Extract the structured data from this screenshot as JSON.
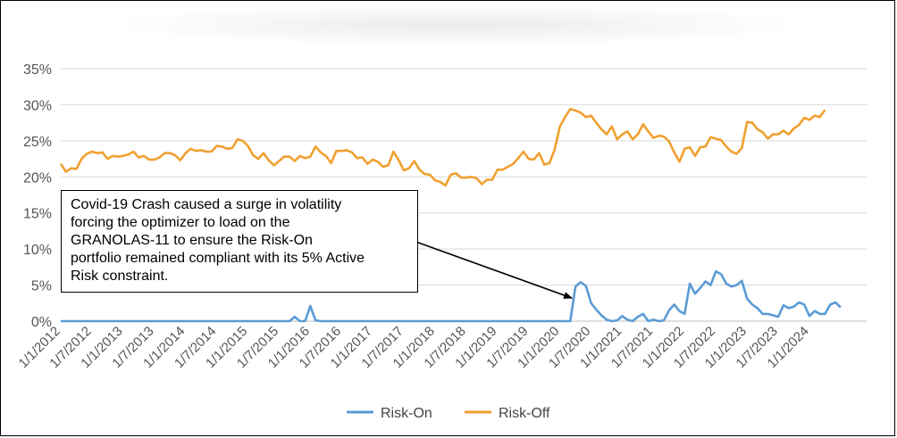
{
  "chart_data": {
    "type": "line",
    "ylim": [
      0,
      35
    ],
    "y_ticks": [
      "0%",
      "5%",
      "10%",
      "15%",
      "20%",
      "25%",
      "30%",
      "35%"
    ],
    "x_tick_labels": [
      "1/1/2012",
      "1/7/2012",
      "1/1/2013",
      "1/7/2013",
      "1/1/2014",
      "1/7/2014",
      "1/1/2015",
      "1/7/2015",
      "1/1/2016",
      "1/7/2016",
      "1/1/2017",
      "1/7/2017",
      "1/1/2018",
      "1/7/2018",
      "1/1/2019",
      "1/7/2019",
      "1/1/2020",
      "1/7/2020",
      "1/1/2021",
      "1/7/2021",
      "1/1/2022",
      "1/7/2022",
      "1/1/2023",
      "1/7/2023",
      "1/1/2024"
    ],
    "x_range": [
      "2012-01",
      "2024-12"
    ],
    "grid": true,
    "legend_position": "bottom",
    "series": [
      {
        "name": "Risk-On",
        "color": "#5B9BD5",
        "points": [
          [
            "2012-01",
            0
          ],
          [
            "2015-09",
            0
          ],
          [
            "2015-10",
            0.6
          ],
          [
            "2015-11",
            0
          ],
          [
            "2015-12",
            0
          ],
          [
            "2016-01",
            2.1
          ],
          [
            "2016-02",
            0.1
          ],
          [
            "2016-03",
            0
          ],
          [
            "2020-03",
            0
          ],
          [
            "2020-04",
            4.8
          ],
          [
            "2020-05",
            5.4
          ],
          [
            "2020-06",
            4.9
          ],
          [
            "2020-07",
            2.5
          ],
          [
            "2020-08",
            1.6
          ],
          [
            "2020-09",
            0.8
          ],
          [
            "2020-10",
            0.2
          ],
          [
            "2020-11",
            0.0
          ],
          [
            "2020-12",
            0.1
          ],
          [
            "2021-01",
            0.7
          ],
          [
            "2021-02",
            0.2
          ],
          [
            "2021-03",
            0.0
          ],
          [
            "2021-04",
            0.6
          ],
          [
            "2021-05",
            1.0
          ],
          [
            "2021-06",
            0.0
          ],
          [
            "2021-07",
            0.2
          ],
          [
            "2021-08",
            0.0
          ],
          [
            "2021-09",
            0.1
          ],
          [
            "2021-10",
            1.5
          ],
          [
            "2021-11",
            2.3
          ],
          [
            "2021-12",
            1.4
          ],
          [
            "2022-01",
            1.0
          ],
          [
            "2022-02",
            5.2
          ],
          [
            "2022-03",
            3.8
          ],
          [
            "2022-04",
            4.6
          ],
          [
            "2022-05",
            5.5
          ],
          [
            "2022-06",
            5.0
          ],
          [
            "2022-07",
            6.9
          ],
          [
            "2022-08",
            6.5
          ],
          [
            "2022-09",
            5.2
          ],
          [
            "2022-10",
            4.8
          ],
          [
            "2022-11",
            5.0
          ],
          [
            "2022-12",
            5.6
          ],
          [
            "2023-01",
            3.1
          ],
          [
            "2023-02",
            2.3
          ],
          [
            "2023-03",
            1.8
          ],
          [
            "2023-04",
            1.0
          ],
          [
            "2023-05",
            1.0
          ],
          [
            "2023-06",
            0.8
          ],
          [
            "2023-07",
            0.6
          ],
          [
            "2023-08",
            2.2
          ],
          [
            "2023-09",
            1.8
          ],
          [
            "2023-10",
            2.0
          ],
          [
            "2023-11",
            2.6
          ],
          [
            "2023-12",
            2.3
          ],
          [
            "2024-01",
            0.7
          ],
          [
            "2024-02",
            1.4
          ],
          [
            "2024-03",
            1.0
          ],
          [
            "2024-04",
            1.0
          ],
          [
            "2024-05",
            2.3
          ],
          [
            "2024-06",
            2.6
          ],
          [
            "2024-07",
            1.9
          ]
        ]
      },
      {
        "name": "Risk-Off",
        "color": "#F0A030",
        "points": [
          [
            "2012-01",
            21.8
          ],
          [
            "2012-02",
            20.7
          ],
          [
            "2012-03",
            21.2
          ],
          [
            "2012-04",
            21.1
          ],
          [
            "2012-05",
            22.5
          ],
          [
            "2012-06",
            23.2
          ],
          [
            "2012-07",
            23.5
          ],
          [
            "2012-08",
            23.3
          ],
          [
            "2012-09",
            23.4
          ],
          [
            "2012-10",
            22.5
          ],
          [
            "2012-11",
            22.9
          ],
          [
            "2012-12",
            22.8
          ],
          [
            "2013-01",
            22.9
          ],
          [
            "2013-02",
            23.1
          ],
          [
            "2013-03",
            23.5
          ],
          [
            "2013-04",
            22.7
          ],
          [
            "2013-05",
            22.9
          ],
          [
            "2013-06",
            22.4
          ],
          [
            "2013-07",
            22.4
          ],
          [
            "2013-08",
            22.7
          ],
          [
            "2013-09",
            23.3
          ],
          [
            "2013-10",
            23.3
          ],
          [
            "2013-11",
            23.0
          ],
          [
            "2013-12",
            22.3
          ],
          [
            "2014-01",
            23.3
          ],
          [
            "2014-02",
            23.9
          ],
          [
            "2014-03",
            23.6
          ],
          [
            "2014-04",
            23.7
          ],
          [
            "2014-05",
            23.5
          ],
          [
            "2014-06",
            23.5
          ],
          [
            "2014-07",
            24.3
          ],
          [
            "2014-08",
            24.2
          ],
          [
            "2014-09",
            23.9
          ],
          [
            "2014-10",
            24.0
          ],
          [
            "2014-11",
            25.2
          ],
          [
            "2014-12",
            25.0
          ],
          [
            "2015-01",
            24.3
          ],
          [
            "2015-02",
            23.0
          ],
          [
            "2015-03",
            22.5
          ],
          [
            "2015-04",
            23.3
          ],
          [
            "2015-05",
            22.3
          ],
          [
            "2015-06",
            21.6
          ],
          [
            "2015-07",
            22.2
          ],
          [
            "2015-08",
            22.8
          ],
          [
            "2015-09",
            22.8
          ],
          [
            "2015-10",
            22.2
          ],
          [
            "2015-11",
            22.9
          ],
          [
            "2015-12",
            22.6
          ],
          [
            "2016-01",
            22.8
          ],
          [
            "2016-02",
            24.2
          ],
          [
            "2016-03",
            23.4
          ],
          [
            "2016-04",
            22.9
          ],
          [
            "2016-05",
            21.9
          ],
          [
            "2016-06",
            23.6
          ],
          [
            "2016-07",
            23.6
          ],
          [
            "2016-08",
            23.7
          ],
          [
            "2016-09",
            23.4
          ],
          [
            "2016-10",
            22.6
          ],
          [
            "2016-11",
            22.7
          ],
          [
            "2016-12",
            21.8
          ],
          [
            "2017-01",
            22.4
          ],
          [
            "2017-02",
            22.1
          ],
          [
            "2017-03",
            21.4
          ],
          [
            "2017-04",
            21.6
          ],
          [
            "2017-05",
            23.5
          ],
          [
            "2017-06",
            22.3
          ],
          [
            "2017-07",
            20.9
          ],
          [
            "2017-08",
            21.2
          ],
          [
            "2017-09",
            22.2
          ],
          [
            "2017-10",
            21.0
          ],
          [
            "2017-11",
            20.4
          ],
          [
            "2017-12",
            20.3
          ],
          [
            "2018-01",
            19.5
          ],
          [
            "2018-02",
            19.3
          ],
          [
            "2018-03",
            18.8
          ],
          [
            "2018-04",
            20.3
          ],
          [
            "2018-05",
            20.5
          ],
          [
            "2018-06",
            19.9
          ],
          [
            "2018-07",
            19.9
          ],
          [
            "2018-08",
            20.0
          ],
          [
            "2018-09",
            19.8
          ],
          [
            "2018-10",
            19.0
          ],
          [
            "2018-11",
            19.6
          ],
          [
            "2018-12",
            19.6
          ],
          [
            "2019-01",
            21.0
          ],
          [
            "2019-02",
            21.0
          ],
          [
            "2019-03",
            21.4
          ],
          [
            "2019-04",
            21.8
          ],
          [
            "2019-05",
            22.6
          ],
          [
            "2019-06",
            23.5
          ],
          [
            "2019-07",
            22.5
          ],
          [
            "2019-08",
            22.4
          ],
          [
            "2019-09",
            23.3
          ],
          [
            "2019-10",
            21.7
          ],
          [
            "2019-11",
            21.9
          ],
          [
            "2019-12",
            23.8
          ],
          [
            "2020-01",
            27.0
          ],
          [
            "2020-02",
            28.3
          ],
          [
            "2020-03",
            29.4
          ],
          [
            "2020-04",
            29.2
          ],
          [
            "2020-05",
            28.9
          ],
          [
            "2020-06",
            28.3
          ],
          [
            "2020-07",
            28.5
          ],
          [
            "2020-08",
            27.5
          ],
          [
            "2020-09",
            26.6
          ],
          [
            "2020-10",
            25.9
          ],
          [
            "2020-11",
            27.0
          ],
          [
            "2020-12",
            25.2
          ],
          [
            "2021-01",
            25.9
          ],
          [
            "2021-02",
            26.3
          ],
          [
            "2021-03",
            25.2
          ],
          [
            "2021-04",
            25.9
          ],
          [
            "2021-05",
            27.3
          ],
          [
            "2021-06",
            26.3
          ],
          [
            "2021-07",
            25.4
          ],
          [
            "2021-08",
            25.7
          ],
          [
            "2021-09",
            25.6
          ],
          [
            "2021-10",
            24.9
          ],
          [
            "2021-11",
            23.4
          ],
          [
            "2021-12",
            22.1
          ],
          [
            "2022-01",
            23.9
          ],
          [
            "2022-02",
            24.1
          ],
          [
            "2022-03",
            22.9
          ],
          [
            "2022-04",
            24.1
          ],
          [
            "2022-05",
            24.2
          ],
          [
            "2022-06",
            25.5
          ],
          [
            "2022-07",
            25.3
          ],
          [
            "2022-08",
            25.1
          ],
          [
            "2022-09",
            24.2
          ],
          [
            "2022-10",
            23.5
          ],
          [
            "2022-11",
            23.2
          ],
          [
            "2022-12",
            24.0
          ],
          [
            "2023-01",
            27.6
          ],
          [
            "2023-02",
            27.5
          ],
          [
            "2023-03",
            26.6
          ],
          [
            "2023-04",
            26.2
          ],
          [
            "2023-05",
            25.3
          ],
          [
            "2023-06",
            25.9
          ],
          [
            "2023-07",
            25.9
          ],
          [
            "2023-08",
            26.4
          ],
          [
            "2023-09",
            25.9
          ],
          [
            "2023-10",
            26.7
          ],
          [
            "2023-11",
            27.2
          ],
          [
            "2023-12",
            28.2
          ],
          [
            "2024-01",
            27.9
          ],
          [
            "2024-02",
            28.5
          ],
          [
            "2024-03",
            28.3
          ],
          [
            "2024-04",
            29.3
          ]
        ]
      }
    ],
    "annotation": {
      "lines": [
        "Covid-19 Crash caused a surge in volatility",
        "forcing the optimizer to load on the",
        "GRANOLAS-11 to ensure the Risk-On",
        "portfolio remained compliant with its 5% Active",
        "Risk constraint."
      ],
      "target": [
        "2020-04",
        3.2
      ]
    }
  }
}
